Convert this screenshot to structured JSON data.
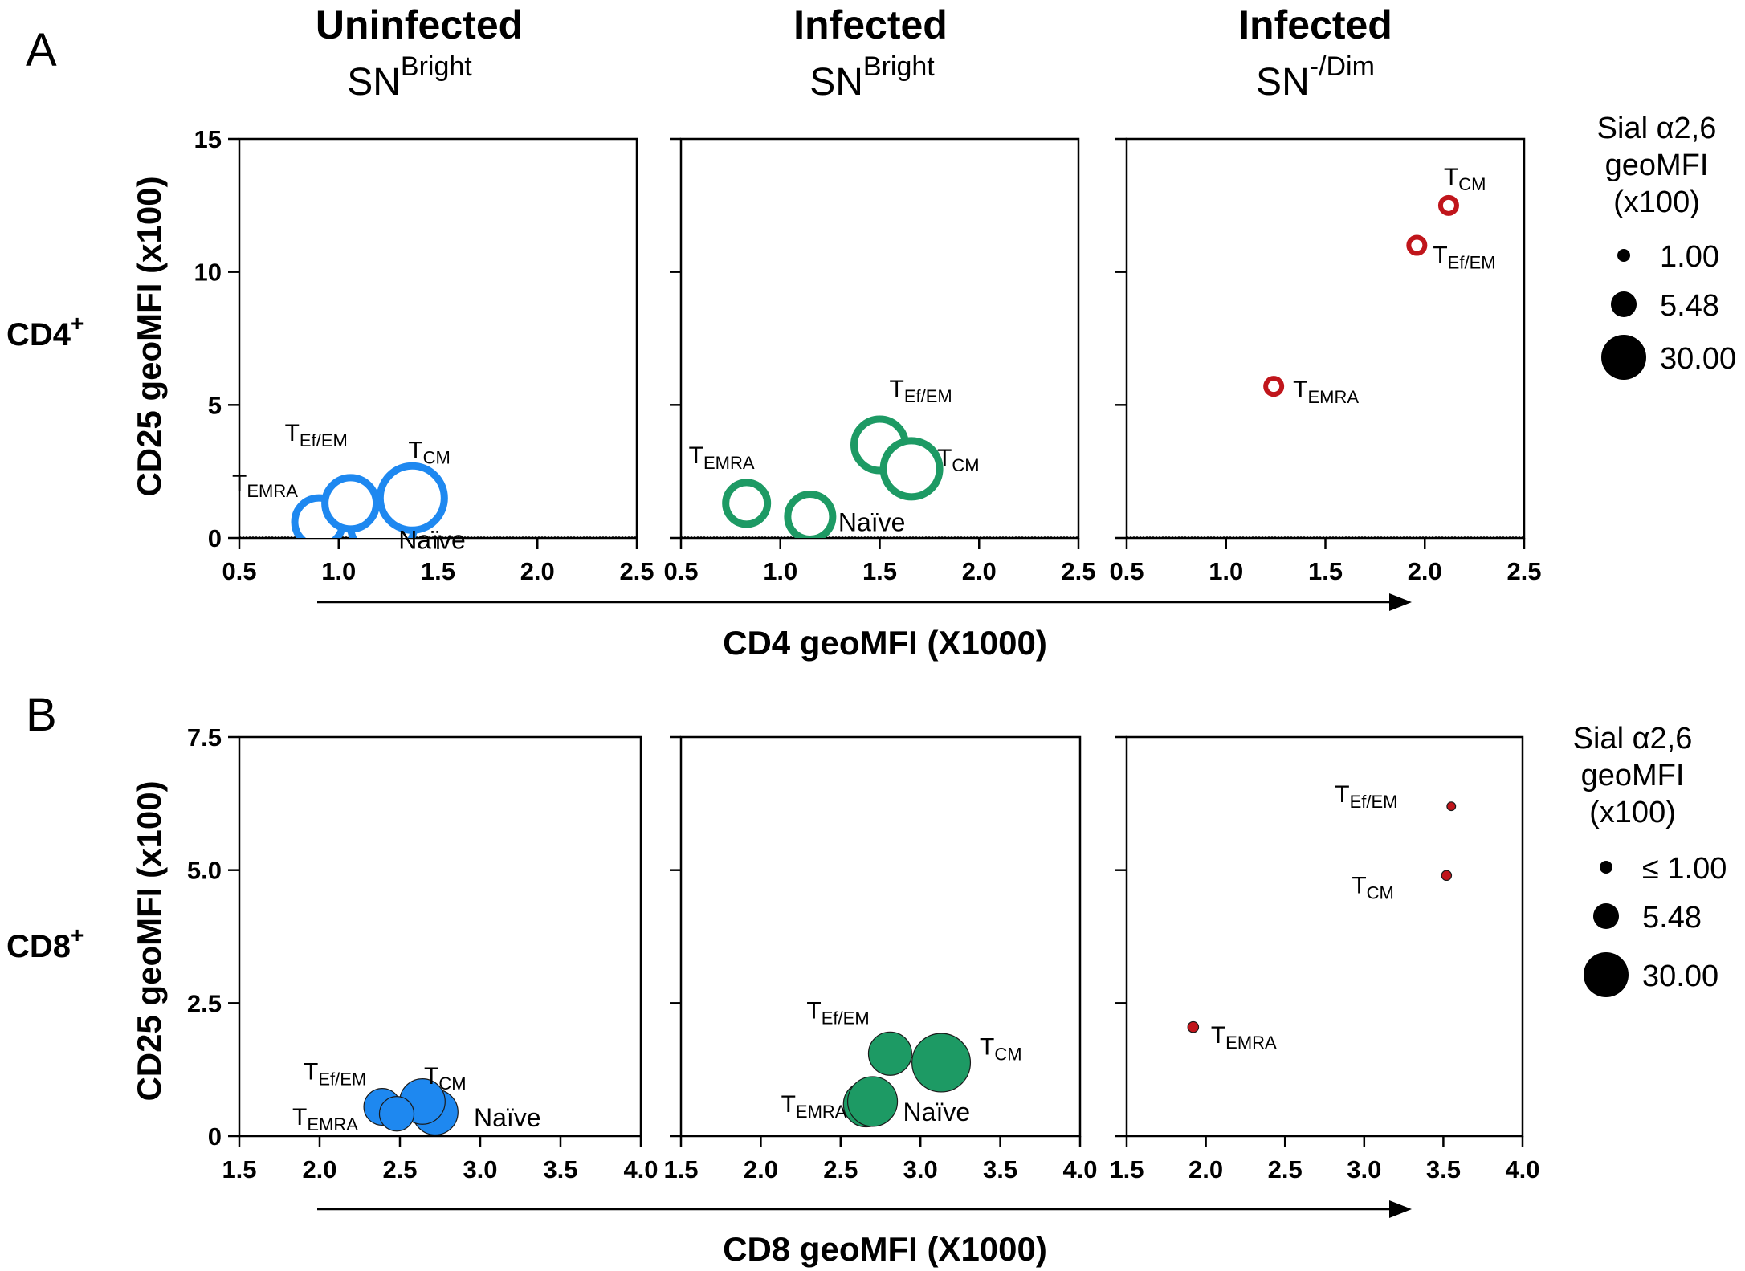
{
  "figure": {
    "panel_labels": [
      "A",
      "B"
    ],
    "columns": [
      {
        "title": "Uninfected",
        "sub_main": "SN",
        "sub_sup": "Bright"
      },
      {
        "title": "Infected",
        "sub_main": "SN",
        "sub_sup": "Bright"
      },
      {
        "title": "Infected",
        "sub_main": "SN",
        "sub_sup": "-/Dim"
      }
    ],
    "rows": [
      {
        "label_main": "CD4",
        "label_sup": "+"
      },
      {
        "label_main": "CD8",
        "label_sup": "+"
      }
    ],
    "y_axis_title": "CD25 geoMFI (x100)",
    "x_axis_titles": [
      "CD4 geoMFI (X1000)",
      "CD8 geoMFI (X1000)"
    ],
    "legends": [
      {
        "title": [
          "Sial α2,6",
          "geoMFI",
          "(x100)"
        ],
        "entries": [
          "1.00",
          "5.48",
          "30.00"
        ]
      },
      {
        "title": [
          "Sial α2,6",
          "geoMFI",
          "(x100)"
        ],
        "entries": [
          "≤  1.00",
          "5.48",
          "30.00"
        ]
      }
    ]
  },
  "chart_data": [
    {
      "type": "scatter",
      "panel": "A",
      "column": "Uninfected SN Bright",
      "xlabel": "CD4 geoMFI (X1000)",
      "ylabel": "CD25 geoMFI (x100)",
      "xlim": [
        0.5,
        2.5
      ],
      "ylim": [
        0,
        15
      ],
      "xticks": [
        0.5,
        1.0,
        1.5,
        2.0,
        2.5
      ],
      "yticks": [
        0,
        5,
        10,
        15
      ],
      "xtick_labels": [
        "0.5",
        "1.0",
        "1.5",
        "2.0",
        "2.5"
      ],
      "ytick_labels": [
        "0",
        "5",
        "10",
        "15"
      ],
      "color": "#1e88f0",
      "style": "ring",
      "points": [
        {
          "name": "Naïve",
          "x": 1.22,
          "y": 0.5,
          "size": 30,
          "label_main": "Naïve"
        },
        {
          "name": "T_EMRA",
          "x": 0.9,
          "y": 0.6,
          "size": 20,
          "label_main": "T",
          "label_sub": "EMRA"
        },
        {
          "name": "T_Ef/EM",
          "x": 1.06,
          "y": 1.3,
          "size": 22,
          "label_main": "T",
          "label_sub": "Ef/EM"
        },
        {
          "name": "T_CM",
          "x": 1.37,
          "y": 1.5,
          "size": 30,
          "label_main": "T",
          "label_sub": "CM"
        }
      ]
    },
    {
      "type": "scatter",
      "panel": "A",
      "column": "Infected SN Bright",
      "xlabel": "CD4 geoMFI (X1000)",
      "ylabel": "CD25 geoMFI (x100)",
      "xlim": [
        0.5,
        2.5
      ],
      "ylim": [
        0,
        15
      ],
      "xticks": [
        0.5,
        1.0,
        1.5,
        2.0,
        2.5
      ],
      "yticks": [
        0,
        5,
        10,
        15
      ],
      "xtick_labels": [
        "0.5",
        "1.0",
        "1.5",
        "2.0",
        "2.5"
      ],
      "ytick_labels": [],
      "color": "#1d9a64",
      "style": "ring",
      "points": [
        {
          "name": "T_EMRA",
          "x": 0.83,
          "y": 1.3,
          "size": 16,
          "label_main": "T",
          "label_sub": "EMRA"
        },
        {
          "name": "Naïve",
          "x": 1.15,
          "y": 0.8,
          "size": 18,
          "label_main": "Naïve"
        },
        {
          "name": "T_Ef/EM",
          "x": 1.5,
          "y": 3.5,
          "size": 22,
          "label_main": "T",
          "label_sub": "Ef/EM"
        },
        {
          "name": "T_CM",
          "x": 1.66,
          "y": 2.6,
          "size": 25,
          "label_main": "T",
          "label_sub": "CM"
        }
      ]
    },
    {
      "type": "scatter",
      "panel": "A",
      "column": "Infected SN -/Dim",
      "xlabel": "CD4 geoMFI (X1000)",
      "ylabel": "CD25 geoMFI (x100)",
      "xlim": [
        0.5,
        2.5
      ],
      "ylim": [
        0,
        15
      ],
      "xticks": [
        0.5,
        1.0,
        1.5,
        2.0,
        2.5
      ],
      "yticks": [
        0,
        5,
        10,
        15
      ],
      "xtick_labels": [
        "0.5",
        "1.0",
        "1.5",
        "2.0",
        "2.5"
      ],
      "ytick_labels": [],
      "color": "#c0151b",
      "style": "ring",
      "points": [
        {
          "name": "T_CM",
          "x": 2.12,
          "y": 12.5,
          "size": 1.5,
          "label_main": "T",
          "label_sub": "CM"
        },
        {
          "name": "T_Ef/EM",
          "x": 1.96,
          "y": 11.0,
          "size": 1.5,
          "label_main": "T",
          "label_sub": "Ef/EM"
        },
        {
          "name": "T_EMRA",
          "x": 1.24,
          "y": 5.7,
          "size": 1.5,
          "label_main": "T",
          "label_sub": "EMRA"
        }
      ]
    },
    {
      "type": "scatter",
      "panel": "B",
      "column": "Uninfected SN Bright",
      "xlabel": "CD8 geoMFI (X1000)",
      "ylabel": "CD25 geoMFI (x100)",
      "xlim": [
        1.5,
        4.0
      ],
      "ylim": [
        0,
        7.5
      ],
      "xticks": [
        1.5,
        2.0,
        2.5,
        3.0,
        3.5,
        4.0
      ],
      "yticks": [
        0,
        2.5,
        5.0,
        7.5
      ],
      "xtick_labels": [
        "1.5",
        "2.0",
        "2.5",
        "3.0",
        "3.5",
        "4.0"
      ],
      "ytick_labels": [
        "0",
        "2.5",
        "5.0",
        "7.5"
      ],
      "color": "#1e88f0",
      "style": "filled",
      "points": [
        {
          "name": "T_Ef/EM",
          "x": 2.39,
          "y": 0.55,
          "size": 14,
          "label_main": "T",
          "label_sub": "Ef/EM"
        },
        {
          "name": "Naïve",
          "x": 2.72,
          "y": 0.45,
          "size": 18,
          "label_main": "Naïve"
        },
        {
          "name": "T_CM",
          "x": 2.64,
          "y": 0.65,
          "size": 18,
          "label_main": "T",
          "label_sub": "CM"
        },
        {
          "name": "T_EMRA",
          "x": 2.48,
          "y": 0.42,
          "size": 13,
          "label_main": "T",
          "label_sub": "EMRA"
        }
      ]
    },
    {
      "type": "scatter",
      "panel": "B",
      "column": "Infected SN Bright",
      "xlabel": "CD8 geoMFI (X1000)",
      "ylabel": "CD25 geoMFI (x100)",
      "xlim": [
        1.5,
        4.0
      ],
      "ylim": [
        0,
        7.5
      ],
      "xticks": [
        1.5,
        2.0,
        2.5,
        3.0,
        3.5,
        4.0
      ],
      "yticks": [
        0,
        2.5,
        5.0,
        7.5
      ],
      "xtick_labels": [
        "1.5",
        "2.0",
        "2.5",
        "3.0",
        "3.5",
        "4.0"
      ],
      "ytick_labels": [],
      "color": "#1d9a64",
      "style": "filled",
      "points": [
        {
          "name": "T_EMRA",
          "x": 2.66,
          "y": 0.6,
          "size": 18,
          "label_main": "T",
          "label_sub": "EMRA"
        },
        {
          "name": "Naïve",
          "x": 2.7,
          "y": 0.65,
          "size": 20,
          "label_main": "Naïve"
        },
        {
          "name": "T_Ef/EM",
          "x": 2.81,
          "y": 1.55,
          "size": 17,
          "label_main": "T",
          "label_sub": "Ef/EM"
        },
        {
          "name": "T_CM",
          "x": 3.13,
          "y": 1.38,
          "size": 24,
          "label_main": "T",
          "label_sub": "CM"
        }
      ]
    },
    {
      "type": "scatter",
      "panel": "B",
      "column": "Infected SN -/Dim",
      "xlabel": "CD8 geoMFI (X1000)",
      "ylabel": "CD25 geoMFI (x100)",
      "xlim": [
        1.5,
        4.0
      ],
      "ylim": [
        0,
        7.5
      ],
      "xticks": [
        1.5,
        2.0,
        2.5,
        3.0,
        3.5,
        4.0
      ],
      "yticks": [
        0,
        2.5,
        5.0,
        7.5
      ],
      "xtick_labels": [
        "1.5",
        "2.0",
        "2.5",
        "3.0",
        "3.5",
        "4.0"
      ],
      "ytick_labels": [],
      "color": "#c0151b",
      "style": "filled",
      "points": [
        {
          "name": "T_Ef/EM",
          "x": 3.55,
          "y": 6.2,
          "size": 1.0,
          "label_main": "T",
          "label_sub": "Ef/EM"
        },
        {
          "name": "T_CM",
          "x": 3.52,
          "y": 4.9,
          "size": 1.6,
          "label_main": "T",
          "label_sub": "CM"
        },
        {
          "name": "T_EMRA",
          "x": 1.92,
          "y": 2.05,
          "size": 2.0,
          "label_main": "T",
          "label_sub": "EMRA"
        }
      ]
    }
  ]
}
